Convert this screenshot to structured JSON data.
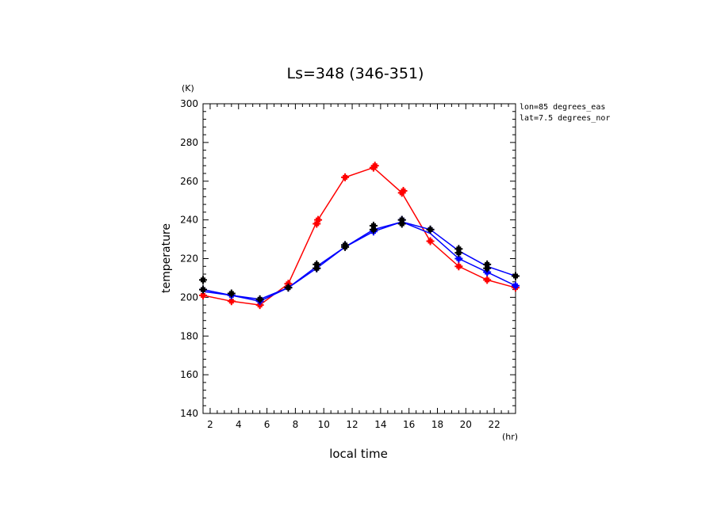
{
  "chart_data": {
    "type": "line",
    "title": "Ls=348 (346-351)",
    "xlabel": "local time",
    "ylabel": "temperature",
    "x_unit": "(hr)",
    "y_unit": "(K)",
    "xlim": [
      1.5,
      23.5
    ],
    "ylim": [
      140,
      300
    ],
    "x_ticks": [
      2,
      4,
      6,
      8,
      10,
      12,
      14,
      16,
      18,
      20,
      22
    ],
    "y_ticks": [
      140,
      160,
      180,
      200,
      220,
      240,
      260,
      280,
      300
    ],
    "annotations": [
      "lon=85 degrees_eas",
      "lat=7.5 degrees_nor"
    ],
    "grid": false,
    "series": [
      {
        "color": "#ff0000",
        "x": [
          1.5,
          3.5,
          5.5,
          7.5,
          9.5,
          11.5,
          13.5,
          15.5,
          17.5,
          19.5,
          21.5,
          23.5
        ],
        "y": [
          201,
          198,
          196,
          207,
          239,
          262,
          267,
          254,
          229,
          216,
          209,
          205
        ],
        "marker_points": [
          [
            1.5,
            201
          ],
          [
            3.5,
            198
          ],
          [
            5.5,
            196
          ],
          [
            7.5,
            207
          ],
          [
            9.5,
            238
          ],
          [
            9.6,
            240
          ],
          [
            11.5,
            262
          ],
          [
            13.5,
            267
          ],
          [
            13.6,
            268
          ],
          [
            15.5,
            254
          ],
          [
            15.6,
            255
          ],
          [
            17.5,
            229
          ],
          [
            19.5,
            216
          ],
          [
            21.5,
            209
          ],
          [
            23.5,
            205
          ]
        ]
      },
      {
        "color": "#0000ff",
        "x": [
          1.5,
          3.5,
          5.5,
          7.5,
          9.5,
          11.5,
          13.5,
          15.5,
          17.5,
          19.5,
          21.5,
          23.5
        ],
        "y": [
          204,
          201,
          199,
          205,
          216,
          226,
          235,
          239,
          235,
          224,
          216,
          211
        ],
        "marker_points": []
      },
      {
        "color": "#0000ff",
        "x": [
          1.5,
          3.5,
          5.5,
          7.5,
          9.5,
          11.5,
          13.5,
          15.5,
          17.5,
          19.5,
          21.5,
          23.5
        ],
        "y": [
          203,
          201,
          198,
          205,
          215,
          226,
          234,
          239,
          233,
          220,
          213,
          206
        ],
        "marker_points": [
          [
            1.5,
            204
          ],
          [
            3.5,
            201
          ],
          [
            5.5,
            198
          ],
          [
            7.5,
            205
          ],
          [
            9.5,
            215
          ],
          [
            11.5,
            227
          ],
          [
            13.5,
            234
          ],
          [
            15.5,
            240
          ],
          [
            17.5,
            235
          ],
          [
            19.5,
            220
          ],
          [
            21.5,
            213
          ],
          [
            23.5,
            206
          ]
        ]
      },
      {
        "color": "#000000",
        "x": [],
        "y": [],
        "marker_points": [
          [
            1.5,
            209
          ],
          [
            1.5,
            204
          ],
          [
            3.5,
            202
          ],
          [
            5.5,
            199
          ],
          [
            7.5,
            205
          ],
          [
            9.5,
            217
          ],
          [
            9.5,
            215
          ],
          [
            11.5,
            227
          ],
          [
            11.5,
            226
          ],
          [
            13.5,
            237
          ],
          [
            13.5,
            235
          ],
          [
            15.5,
            240
          ],
          [
            15.5,
            238
          ],
          [
            17.5,
            235
          ],
          [
            19.5,
            225
          ],
          [
            19.5,
            223
          ],
          [
            21.5,
            217
          ],
          [
            21.5,
            215
          ],
          [
            23.5,
            211
          ]
        ]
      }
    ]
  }
}
